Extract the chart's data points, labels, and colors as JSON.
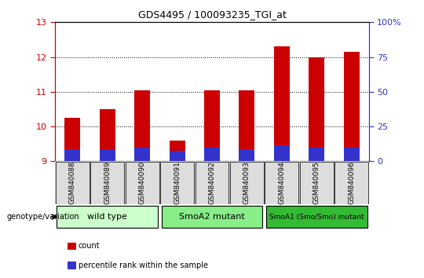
{
  "title": "GDS4495 / 100093235_TGI_at",
  "samples": [
    "GSM840088",
    "GSM840089",
    "GSM840090",
    "GSM840091",
    "GSM840092",
    "GSM840093",
    "GSM840094",
    "GSM840095",
    "GSM840096"
  ],
  "count_values": [
    10.25,
    10.5,
    11.05,
    9.6,
    11.05,
    11.05,
    12.3,
    12.0,
    12.15
  ],
  "percentile_values": [
    9.35,
    9.35,
    9.4,
    9.3,
    9.4,
    9.35,
    9.45,
    9.4,
    9.4
  ],
  "ymin": 9.0,
  "ymax": 13.0,
  "yticks": [
    9,
    10,
    11,
    12,
    13
  ],
  "y2min": 0,
  "y2max": 100,
  "y2ticks": [
    0,
    25,
    50,
    75,
    100
  ],
  "bar_color_red": "#cc0000",
  "bar_color_blue": "#3333cc",
  "bar_width": 0.45,
  "groups": [
    {
      "label": "wild type",
      "start": 0,
      "end": 3,
      "color": "#ccffcc"
    },
    {
      "label": "SmoA2 mutant",
      "start": 3,
      "end": 6,
      "color": "#88ee88"
    },
    {
      "label": "SmoA1 (Smo/Smo) mutant",
      "start": 6,
      "end": 9,
      "color": "#33bb33"
    }
  ],
  "legend_items": [
    {
      "label": "count",
      "color": "#cc0000"
    },
    {
      "label": "percentile rank within the sample",
      "color": "#3333cc"
    }
  ],
  "genotype_label": "genotype/variation",
  "tick_color_left": "#cc0000",
  "tick_color_right": "#3333cc",
  "sample_box_color": "#cccccc",
  "sample_box_inner": "#dddddd"
}
